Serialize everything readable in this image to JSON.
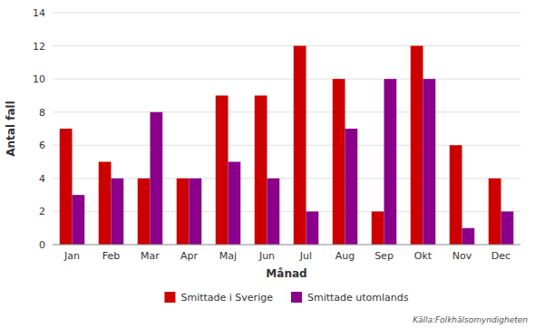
{
  "chart_data": {
    "type": "bar",
    "categories": [
      "Jan",
      "Feb",
      "Mar",
      "Apr",
      "Maj",
      "Jun",
      "Jul",
      "Aug",
      "Sep",
      "Okt",
      "Nov",
      "Dec"
    ],
    "series": [
      {
        "name": "Smittade i Sverige",
        "color": "#cc0000",
        "values": [
          7,
          5,
          4,
          4,
          9,
          9,
          12,
          10,
          2,
          12,
          6,
          4
        ]
      },
      {
        "name": "Smittade utomlands",
        "color": "#8b008b",
        "values": [
          3,
          4,
          8,
          4,
          5,
          4,
          2,
          7,
          10,
          10,
          1,
          2
        ]
      }
    ],
    "x_label": "Månad",
    "y_label": "Antal fall",
    "ylim": [
      0,
      14
    ],
    "yticks": [
      0,
      2,
      4,
      6,
      8,
      10,
      12,
      14
    ],
    "grid": true,
    "legend": "bottom",
    "annotations": [
      "Källa:Folkhälsomyndigheten"
    ]
  }
}
